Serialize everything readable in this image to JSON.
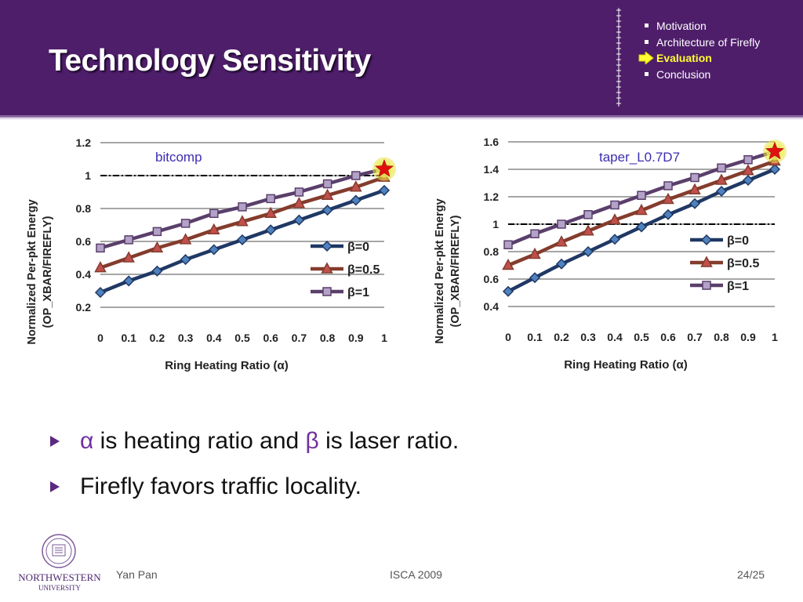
{
  "title": "Technology Sensitivity",
  "outline": [
    {
      "label": "Motivation",
      "active": false
    },
    {
      "label": "Architecture of Firefly",
      "active": false
    },
    {
      "label": "Evaluation",
      "active": true
    },
    {
      "label": "Conclusion",
      "active": false
    }
  ],
  "colors": {
    "header": "#4e1e6a",
    "beta0": "#1f3864",
    "beta05": "#843c2c",
    "beta1": "#5a3f6b",
    "greek": "#7030a0"
  },
  "chart_data": [
    {
      "type": "line",
      "title": "bitcomp",
      "xlabel": "Ring Heating Ratio (α)",
      "ylabel": "Normalized Per-pkt Energy (OP_XBAR/FIREFLY)",
      "x": [
        0,
        0.1,
        0.2,
        0.3,
        0.4,
        0.5,
        0.6,
        0.7,
        0.8,
        0.9,
        1
      ],
      "x_ticks": [
        "0",
        "0.1",
        "0.2",
        "0.3",
        "0.4",
        "0.5",
        "0.6",
        "0.7",
        "0.8",
        "0.9",
        "1"
      ],
      "y_ticks": [
        "0.2",
        "0.4",
        "0.6",
        "0.8",
        "1",
        "1.2"
      ],
      "ylim": [
        0.2,
        1.2
      ],
      "reference_y": 1,
      "series": [
        {
          "name": "β=0",
          "marker": "diamond",
          "values": [
            0.29,
            0.36,
            0.42,
            0.49,
            0.55,
            0.61,
            0.67,
            0.73,
            0.79,
            0.85,
            0.91
          ]
        },
        {
          "name": "β=0.5",
          "marker": "triangle",
          "values": [
            0.44,
            0.5,
            0.56,
            0.61,
            0.67,
            0.72,
            0.77,
            0.83,
            0.88,
            0.93,
            0.99
          ]
        },
        {
          "name": "β=1",
          "marker": "square",
          "values": [
            0.56,
            0.61,
            0.66,
            0.71,
            0.77,
            0.81,
            0.86,
            0.9,
            0.95,
            1.0,
            1.04
          ]
        }
      ],
      "legend_position": "lower-right",
      "star_marker": {
        "x": 1,
        "y": 1.04
      },
      "grid": true
    },
    {
      "type": "line",
      "title": "taper_L0.7D7",
      "xlabel": "Ring Heating Ratio (α)",
      "ylabel": "Normalized Per-pkt Energy (OP_XBAR/FIREFLY)",
      "x": [
        0,
        0.1,
        0.2,
        0.3,
        0.4,
        0.5,
        0.6,
        0.7,
        0.8,
        0.9,
        1
      ],
      "x_ticks": [
        "0",
        "0.1",
        "0.2",
        "0.3",
        "0.4",
        "0.5",
        "0.6",
        "0.7",
        "0.8",
        "0.9",
        "1"
      ],
      "y_ticks": [
        "0.4",
        "0.6",
        "0.8",
        "1",
        "1.2",
        "1.4",
        "1.6"
      ],
      "ylim": [
        0.4,
        1.6
      ],
      "reference_y": 1,
      "series": [
        {
          "name": "β=0",
          "marker": "diamond",
          "values": [
            0.51,
            0.61,
            0.71,
            0.8,
            0.89,
            0.98,
            1.07,
            1.15,
            1.24,
            1.32,
            1.4
          ]
        },
        {
          "name": "β=0.5",
          "marker": "triangle",
          "values": [
            0.7,
            0.78,
            0.87,
            0.95,
            1.03,
            1.1,
            1.18,
            1.25,
            1.32,
            1.39,
            1.46
          ]
        },
        {
          "name": "β=1",
          "marker": "square",
          "values": [
            0.85,
            0.93,
            1.0,
            1.07,
            1.14,
            1.21,
            1.28,
            1.34,
            1.41,
            1.47,
            1.53
          ]
        }
      ],
      "legend_position": "lower-right",
      "star_marker": {
        "x": 1,
        "y": 1.53
      },
      "grid": true
    }
  ],
  "bullets": [
    {
      "parts": [
        {
          "t": "α",
          "greek": true
        },
        {
          "t": " is heating ratio and ",
          "greek": false
        },
        {
          "t": "β",
          "greek": true
        },
        {
          "t": " is laser ratio.",
          "greek": false
        }
      ]
    },
    {
      "parts": [
        {
          "t": "Firefly favors traffic locality.",
          "greek": false
        }
      ]
    }
  ],
  "footer": {
    "author": "Yan Pan",
    "venue": "ISCA 2009",
    "page": "24/25",
    "logo_name": "NORTHWESTERN",
    "logo_sub": "UNIVERSITY"
  }
}
